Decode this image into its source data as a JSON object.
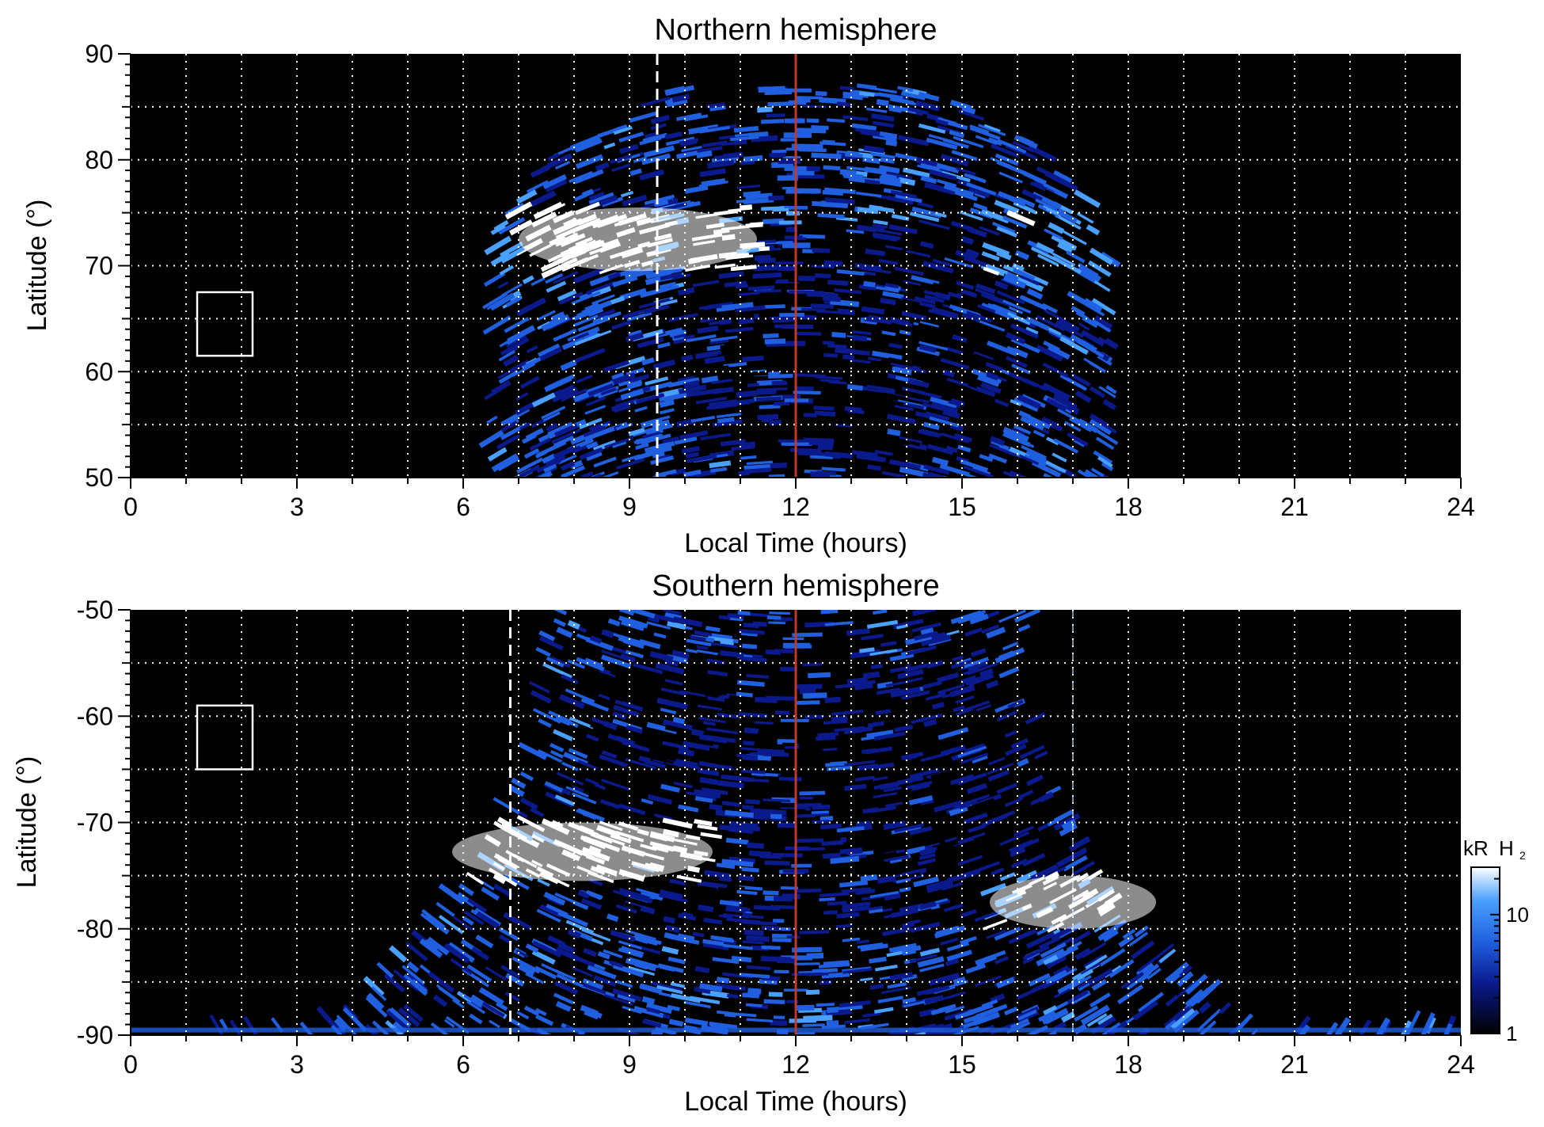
{
  "chart_data": [
    {
      "type": "heatmap",
      "title": "Northern hemisphere",
      "xlabel": "Local Time (hours)",
      "ylabel": "Latitude (°)",
      "xlim": [
        0,
        24
      ],
      "ylim": [
        50,
        90
      ],
      "xticks": [
        0,
        3,
        6,
        9,
        12,
        15,
        18,
        21,
        24
      ],
      "xtick_labels": [
        "0",
        "3",
        "6",
        "9",
        "12",
        "15",
        "18",
        "21",
        "24"
      ],
      "yticks": [
        50,
        60,
        70,
        80,
        90
      ],
      "ytick_labels": [
        "50",
        "60",
        "70",
        "80",
        "90"
      ],
      "grid": true,
      "colormap": [
        "#000000",
        "#0a1a8c",
        "#1f5fe0",
        "#4aa0ff",
        "#ffffff"
      ],
      "dashed_line_lt": 9.5,
      "noon_line_lt": 12,
      "noon_line_color": "#c0392b",
      "box": {
        "lt": [
          1.2,
          2.2
        ],
        "lat": [
          61.5,
          67.5
        ]
      },
      "emission_regions": [
        {
          "kind": "envelope",
          "lt_range_base": [
            6.5,
            17.7
          ],
          "lat_top": 87,
          "brightness": 0.55
        },
        {
          "kind": "bright-arc",
          "lt_range": [
            7.0,
            11.3
          ],
          "lat_range": [
            69.5,
            75.5
          ],
          "brightness": 1.0
        },
        {
          "kind": "oval-ring",
          "lt_range": [
            8.8,
            16.5
          ],
          "lat_center": 72.5,
          "brightness": 0.75
        },
        {
          "kind": "dark-polar-cap",
          "lt_range": [
            10.0,
            15.5
          ],
          "lat_range": [
            52,
            74
          ],
          "brightness": 0.15
        }
      ]
    },
    {
      "type": "heatmap",
      "title": "Southern hemisphere",
      "xlabel": "Local Time (hours)",
      "ylabel": "Latitude (°)",
      "xlim": [
        0,
        24
      ],
      "ylim": [
        -90,
        -50
      ],
      "xticks": [
        0,
        3,
        6,
        9,
        12,
        15,
        18,
        21,
        24
      ],
      "xtick_labels": [
        "0",
        "3",
        "6",
        "9",
        "12",
        "15",
        "18",
        "21",
        "24"
      ],
      "yticks": [
        -90,
        -80,
        -70,
        -60,
        -50
      ],
      "ytick_labels": [
        "-90",
        "-80",
        "-70",
        "-60",
        "-50"
      ],
      "grid": true,
      "colormap": [
        "#000000",
        "#0a1a8c",
        "#1f5fe0",
        "#4aa0ff",
        "#ffffff"
      ],
      "dashed_line_lt": 6.85,
      "dashed_line2_lt": 17.0,
      "noon_line_lt": 12,
      "noon_line_color": "#c0392b",
      "box": {
        "lt": [
          1.2,
          2.2
        ],
        "lat": [
          -65,
          -59
        ]
      },
      "emission_regions": [
        {
          "kind": "envelope",
          "lt_range_base": [
            3.0,
            20.5
          ],
          "lat_bottom": -89,
          "brightness": 0.55
        },
        {
          "kind": "bright-arc",
          "lt_range": [
            5.8,
            10.5
          ],
          "lat_range": [
            -75.5,
            -70
          ],
          "brightness": 1.0
        },
        {
          "kind": "bright-arc",
          "lt_range": [
            15.5,
            18.5
          ],
          "lat_range": [
            -80,
            -75
          ],
          "brightness": 0.95
        },
        {
          "kind": "dark-polar-cap",
          "lt_range": [
            8.5,
            16.5
          ],
          "lat_range": [
            -80,
            -55
          ],
          "brightness": 0.15
        }
      ]
    }
  ],
  "colorbar": {
    "title_kR": "kR",
    "title_H": "H",
    "title_sub": "2",
    "ticks": [
      1,
      10
    ],
    "tick_labels": [
      "1",
      "10"
    ],
    "range": [
      1,
      25
    ],
    "scale": "log"
  }
}
